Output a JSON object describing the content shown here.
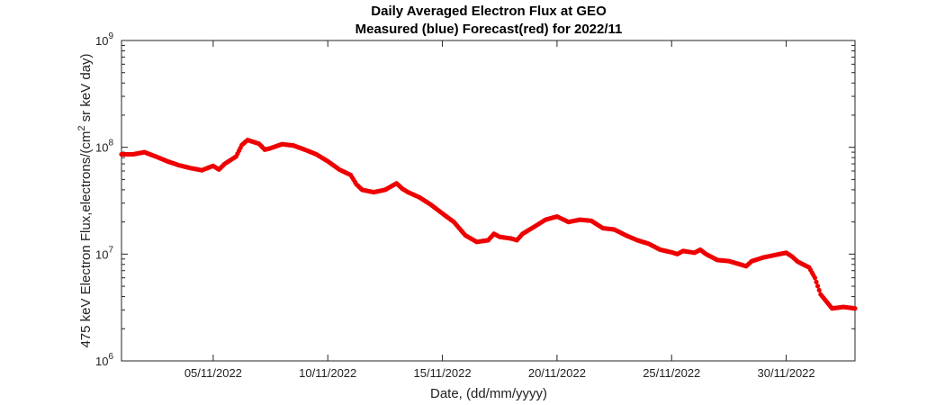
{
  "chart_data": {
    "type": "scatter",
    "title": "Daily Averaged Electron Flux at GEO",
    "subtitle": "Measured (blue) Forecast(red) for 2022/11",
    "xlabel": "Date, (dd/mm/yyyy)",
    "ylabel_main": "475 keV Electron Flux,electrons/(cm",
    "ylabel_sup": "2",
    "ylabel_tail": " sr keV day)",
    "x_scale": "date",
    "y_scale": "log",
    "xlim": [
      "2022-11-01",
      "2022-12-03"
    ],
    "ylim": [
      1000000,
      1000000000
    ],
    "x_ticks": [
      {
        "date": "2022-11-05",
        "label": "05/11/2022"
      },
      {
        "date": "2022-11-10",
        "label": "10/11/2022"
      },
      {
        "date": "2022-11-15",
        "label": "15/11/2022"
      },
      {
        "date": "2022-11-20",
        "label": "20/11/2022"
      },
      {
        "date": "2022-11-25",
        "label": "25/11/2022"
      },
      {
        "date": "2022-11-30",
        "label": "30/11/2022"
      }
    ],
    "y_ticks": [
      {
        "value": 1000000,
        "base": "10",
        "exp": "6"
      },
      {
        "value": 10000000,
        "base": "10",
        "exp": "7"
      },
      {
        "value": 100000000,
        "base": "10",
        "exp": "8"
      },
      {
        "value": 1000000000,
        "base": "10",
        "exp": "9"
      }
    ],
    "grid": false,
    "series": [
      {
        "color": "#ee0000",
        "points": [
          [
            "2022-11-01 00:00",
            86000000
          ],
          [
            "2022-11-01 12:00",
            86000000
          ],
          [
            "2022-11-02 00:00",
            90000000
          ],
          [
            "2022-11-02 12:00",
            82000000
          ],
          [
            "2022-11-03 00:00",
            74000000
          ],
          [
            "2022-11-03 12:00",
            68000000
          ],
          [
            "2022-11-04 00:00",
            64000000
          ],
          [
            "2022-11-04 12:00",
            61000000
          ],
          [
            "2022-11-05 00:00",
            67000000
          ],
          [
            "2022-11-05 06:00",
            62000000
          ],
          [
            "2022-11-05 12:00",
            70000000
          ],
          [
            "2022-11-06 00:00",
            82000000
          ],
          [
            "2022-11-06 06:00",
            105000000
          ],
          [
            "2022-11-06 12:00",
            117000000
          ],
          [
            "2022-11-07 00:00",
            108000000
          ],
          [
            "2022-11-07 06:00",
            95000000
          ],
          [
            "2022-11-07 12:00",
            98000000
          ],
          [
            "2022-11-08 00:00",
            107000000
          ],
          [
            "2022-11-08 12:00",
            104000000
          ],
          [
            "2022-11-09 00:00",
            95000000
          ],
          [
            "2022-11-09 12:00",
            86000000
          ],
          [
            "2022-11-10 00:00",
            74000000
          ],
          [
            "2022-11-10 12:00",
            62000000
          ],
          [
            "2022-11-11 00:00",
            55000000
          ],
          [
            "2022-11-11 06:00",
            45000000
          ],
          [
            "2022-11-11 12:00",
            40000000
          ],
          [
            "2022-11-12 00:00",
            38000000
          ],
          [
            "2022-11-12 12:00",
            40000000
          ],
          [
            "2022-11-13 00:00",
            46000000
          ],
          [
            "2022-11-13 06:00",
            41000000
          ],
          [
            "2022-11-13 12:00",
            38000000
          ],
          [
            "2022-11-14 00:00",
            34000000
          ],
          [
            "2022-11-14 12:00",
            29000000
          ],
          [
            "2022-11-15 00:00",
            24000000
          ],
          [
            "2022-11-15 12:00",
            20000000
          ],
          [
            "2022-11-16 00:00",
            15000000
          ],
          [
            "2022-11-16 12:00",
            13000000
          ],
          [
            "2022-11-17 00:00",
            13500000
          ],
          [
            "2022-11-17 06:00",
            15500000
          ],
          [
            "2022-11-17 12:00",
            14500000
          ],
          [
            "2022-11-18 00:00",
            14000000
          ],
          [
            "2022-11-18 06:00",
            13500000
          ],
          [
            "2022-11-18 12:00",
            15500000
          ],
          [
            "2022-11-19 00:00",
            18000000
          ],
          [
            "2022-11-19 12:00",
            21000000
          ],
          [
            "2022-11-20 00:00",
            22500000
          ],
          [
            "2022-11-20 12:00",
            20000000
          ],
          [
            "2022-11-21 00:00",
            21000000
          ],
          [
            "2022-11-21 12:00",
            20500000
          ],
          [
            "2022-11-22 00:00",
            17500000
          ],
          [
            "2022-11-22 12:00",
            17000000
          ],
          [
            "2022-11-23 00:00",
            15000000
          ],
          [
            "2022-11-23 12:00",
            13500000
          ],
          [
            "2022-11-24 00:00",
            12500000
          ],
          [
            "2022-11-24 12:00",
            11000000
          ],
          [
            "2022-11-25 00:00",
            10400000
          ],
          [
            "2022-11-25 06:00",
            10000000
          ],
          [
            "2022-11-25 12:00",
            10700000
          ],
          [
            "2022-11-26 00:00",
            10300000
          ],
          [
            "2022-11-26 06:00",
            11000000
          ],
          [
            "2022-11-26 12:00",
            10000000
          ],
          [
            "2022-11-27 00:00",
            8800000
          ],
          [
            "2022-11-27 12:00",
            8600000
          ],
          [
            "2022-11-28 00:00",
            8000000
          ],
          [
            "2022-11-28 06:00",
            7700000
          ],
          [
            "2022-11-28 12:00",
            8600000
          ],
          [
            "2022-11-29 00:00",
            9300000
          ],
          [
            "2022-11-29 12:00",
            9800000
          ],
          [
            "2022-11-30 00:00",
            10300000
          ],
          [
            "2022-11-30 06:00",
            9500000
          ],
          [
            "2022-11-30 12:00",
            8500000
          ],
          [
            "2022-12-01 00:00",
            7500000
          ],
          [
            "2022-12-01 06:00",
            6000000
          ],
          [
            "2022-12-01 12:00",
            4200000
          ],
          [
            "2022-12-02 00:00",
            3100000
          ],
          [
            "2022-12-02 12:00",
            3200000
          ],
          [
            "2022-12-03 00:00",
            3100000
          ]
        ]
      }
    ]
  }
}
